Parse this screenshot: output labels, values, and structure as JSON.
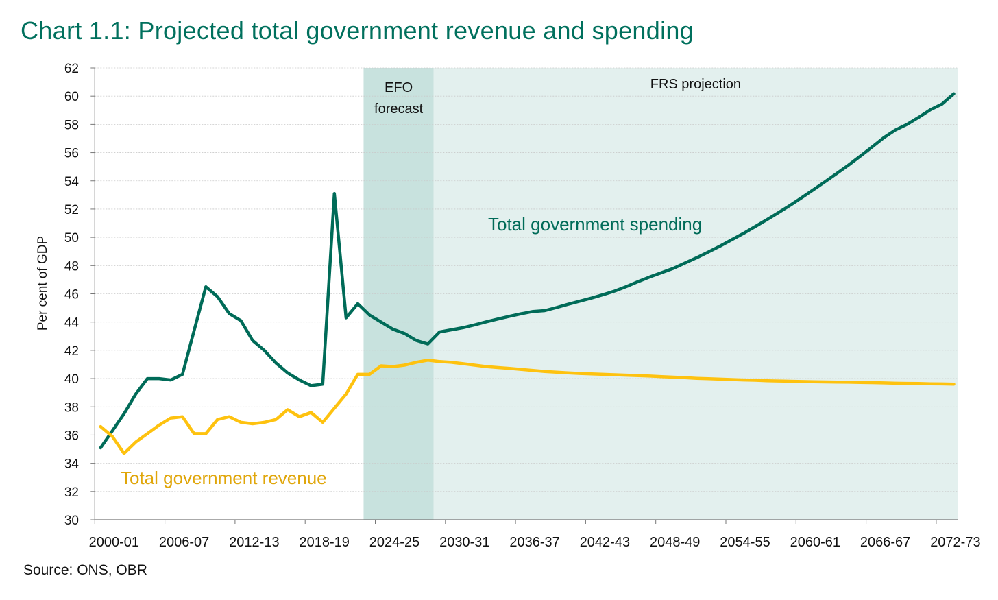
{
  "title": "Chart 1.1: Projected total government revenue and spending",
  "source": "Source: ONS, OBR",
  "colors": {
    "spending": "#006b58",
    "revenue": "#fec20f",
    "revenue_label": "#e0a60a",
    "efo_shade": "#c8e2de",
    "frs_shade": "#e3f0ee",
    "title": "#00705d"
  },
  "chart_data": {
    "type": "line",
    "title": "Chart 1.1: Projected total government revenue and spending",
    "xlabel": "",
    "ylabel": "Per cent of GDP",
    "ylim": [
      30,
      62
    ],
    "yticks": [
      30,
      32,
      34,
      36,
      38,
      40,
      42,
      44,
      46,
      48,
      50,
      52,
      54,
      56,
      58,
      60,
      62
    ],
    "grid": true,
    "xtick_labels": [
      "2000-01",
      "2006-07",
      "2012-13",
      "2018-19",
      "2024-25",
      "2030-31",
      "2036-37",
      "2042-43",
      "2048-49",
      "2054-55",
      "2060-61",
      "2066-67",
      "2072-73"
    ],
    "categories": [
      "2000-01",
      "2001-02",
      "2002-03",
      "2003-04",
      "2004-05",
      "2005-06",
      "2006-07",
      "2007-08",
      "2008-09",
      "2009-10",
      "2010-11",
      "2011-12",
      "2012-13",
      "2013-14",
      "2014-15",
      "2015-16",
      "2016-17",
      "2017-18",
      "2018-19",
      "2019-20",
      "2020-21",
      "2021-22",
      "2022-23",
      "2023-24",
      "2024-25",
      "2025-26",
      "2026-27",
      "2027-28",
      "2028-29",
      "2029-30",
      "2030-31",
      "2031-32",
      "2032-33",
      "2033-34",
      "2034-35",
      "2035-36",
      "2036-37",
      "2037-38",
      "2038-39",
      "2039-40",
      "2040-41",
      "2041-42",
      "2042-43",
      "2043-44",
      "2044-45",
      "2045-46",
      "2046-47",
      "2047-48",
      "2048-49",
      "2049-50",
      "2050-51",
      "2051-52",
      "2052-53",
      "2053-54",
      "2054-55",
      "2055-56",
      "2056-57",
      "2057-58",
      "2058-59",
      "2059-60",
      "2060-61",
      "2061-62",
      "2062-63",
      "2063-64",
      "2064-65",
      "2065-66",
      "2066-67",
      "2067-68",
      "2068-69",
      "2069-70",
      "2070-71",
      "2071-72",
      "2072-73",
      "2073-74"
    ],
    "series": [
      {
        "name": "Total government spending",
        "color_key": "spending",
        "values": [
          35.1,
          36.3,
          37.5,
          38.9,
          40.0,
          40.0,
          39.9,
          40.3,
          43.4,
          46.5,
          45.8,
          44.6,
          44.1,
          42.7,
          42.0,
          41.1,
          40.4,
          39.9,
          39.5,
          39.6,
          53.1,
          44.3,
          45.3,
          44.5,
          44.0,
          43.5,
          43.2,
          42.7,
          42.45,
          43.3,
          43.45,
          43.6,
          43.8,
          44.02,
          44.22,
          44.41,
          44.59,
          44.75,
          44.81,
          45.03,
          45.26,
          45.48,
          45.7,
          45.94,
          46.2,
          46.52,
          46.87,
          47.2,
          47.5,
          47.8,
          48.18,
          48.56,
          48.96,
          49.38,
          49.83,
          50.28,
          50.76,
          51.25,
          51.75,
          52.27,
          52.82,
          53.38,
          53.95,
          54.53,
          55.12,
          55.75,
          56.39,
          57.05,
          57.6,
          58.0,
          58.5,
          59.04,
          59.44,
          60.17
        ]
      },
      {
        "name": "Total government revenue",
        "color_key": "revenue",
        "values": [
          36.6,
          35.9,
          34.7,
          35.5,
          36.1,
          36.7,
          37.2,
          37.3,
          36.1,
          36.1,
          37.1,
          37.3,
          36.9,
          36.8,
          36.9,
          37.1,
          37.8,
          37.3,
          37.6,
          36.9,
          37.9,
          38.9,
          40.3,
          40.3,
          40.9,
          40.85,
          40.95,
          41.15,
          41.3,
          41.2,
          41.15,
          41.05,
          40.95,
          40.85,
          40.78,
          40.72,
          40.65,
          40.57,
          40.5,
          40.45,
          40.4,
          40.36,
          40.33,
          40.3,
          40.27,
          40.24,
          40.21,
          40.18,
          40.14,
          40.1,
          40.06,
          40.02,
          39.99,
          39.96,
          39.93,
          39.9,
          39.88,
          39.85,
          39.83,
          39.81,
          39.79,
          39.77,
          39.76,
          39.75,
          39.74,
          39.72,
          39.71,
          39.69,
          39.67,
          39.66,
          39.65,
          39.63,
          39.62,
          39.6
        ]
      }
    ],
    "shaded_regions": [
      {
        "label_lines": [
          "EFO",
          "forecast"
        ],
        "from": "2023-24",
        "to": "2028-29",
        "color_key": "efo_shade"
      },
      {
        "label_lines": [
          "FRS projection"
        ],
        "from": "2029-30",
        "to": "2073-74",
        "color_key": "frs_shade"
      }
    ],
    "annotations": [
      "Total government spending",
      "Total government revenue"
    ]
  }
}
